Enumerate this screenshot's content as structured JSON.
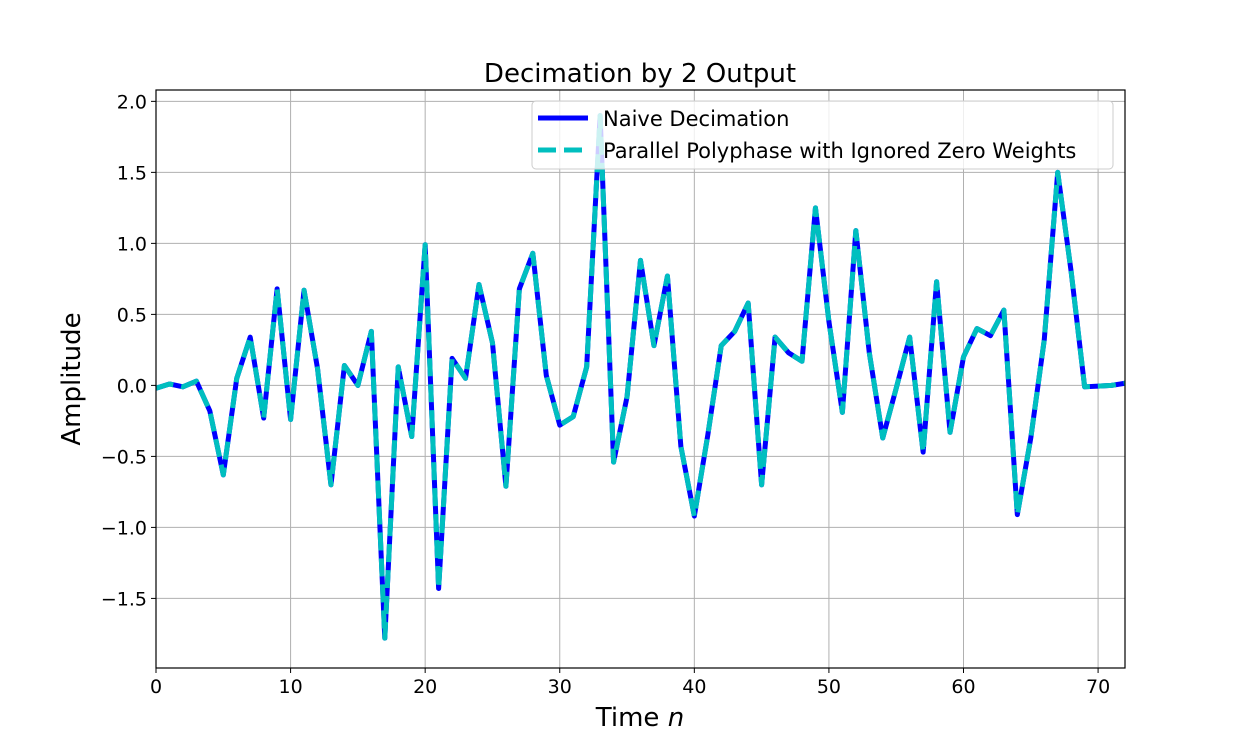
{
  "chart_data": {
    "type": "line",
    "title": "Decimation by 2 Output",
    "xlabel": "Time",
    "xlabel_italic": "n",
    "ylabel": "Amplitude",
    "xlim": [
      0,
      72
    ],
    "ylim": [
      -1.99,
      2.08
    ],
    "grid": true,
    "legend_position": "top-right",
    "xticks": [
      0,
      10,
      20,
      30,
      40,
      50,
      60,
      70
    ],
    "yticks": [
      -1.5,
      -1.0,
      -0.5,
      0.0,
      0.5,
      1.0,
      1.5,
      2.0
    ],
    "ytick_labels": [
      "−1.5",
      "−1.0",
      "−0.5",
      "0.0",
      "0.5",
      "1.0",
      "1.5",
      "2.0"
    ],
    "x": [
      0,
      1,
      2,
      3,
      4,
      5,
      6,
      7,
      8,
      9,
      10,
      11,
      12,
      13,
      14,
      15,
      16,
      17,
      18,
      19,
      20,
      21,
      22,
      23,
      24,
      25,
      26,
      27,
      28,
      29,
      30,
      31,
      32,
      33,
      34,
      35,
      36,
      37,
      38,
      39,
      40,
      41,
      42,
      43,
      44,
      45,
      46,
      47,
      48,
      49,
      50,
      51,
      52,
      53,
      54,
      55,
      56,
      57,
      58,
      59,
      60,
      61,
      62,
      63,
      64,
      65,
      66,
      67,
      68,
      69,
      70,
      71,
      72
    ],
    "series": [
      {
        "name": "Naive Decimation",
        "color": "#0000ff",
        "style": "solid",
        "values": [
          -0.02,
          0.01,
          -0.01,
          0.03,
          -0.18,
          -0.63,
          0.05,
          0.34,
          -0.23,
          0.68,
          -0.24,
          0.67,
          0.12,
          -0.7,
          0.14,
          0.0,
          0.38,
          -1.78,
          0.13,
          -0.36,
          0.99,
          -1.43,
          0.19,
          0.05,
          0.71,
          0.3,
          -0.71,
          0.68,
          0.93,
          0.07,
          -0.28,
          -0.22,
          0.13,
          1.9,
          -0.54,
          -0.08,
          0.88,
          0.28,
          0.77,
          -0.43,
          -0.92,
          -0.35,
          0.28,
          0.38,
          0.58,
          -0.7,
          0.34,
          0.23,
          0.17,
          1.25,
          0.45,
          -0.19,
          1.09,
          0.23,
          -0.37,
          -0.02,
          0.34,
          -0.47,
          0.73,
          -0.33,
          0.2,
          0.4,
          0.35,
          0.53,
          -0.91,
          -0.37,
          0.32,
          1.5,
          0.8,
          -0.01,
          -0.005,
          0.0,
          0.015
        ]
      },
      {
        "name": "Parallel Polyphase with Ignored Zero Weights",
        "color": "#00bfbf",
        "style": "dashed",
        "values": [
          -0.02,
          0.01,
          -0.01,
          0.03,
          -0.18,
          -0.63,
          0.05,
          0.34,
          -0.23,
          0.68,
          -0.24,
          0.67,
          0.12,
          -0.7,
          0.14,
          0.0,
          0.38,
          -1.78,
          0.13,
          -0.36,
          0.99,
          -1.43,
          0.19,
          0.05,
          0.71,
          0.3,
          -0.71,
          0.68,
          0.93,
          0.07,
          -0.28,
          -0.22,
          0.13,
          1.9,
          -0.54,
          -0.08,
          0.88,
          0.28,
          0.77,
          -0.43,
          -0.92,
          -0.35,
          0.28,
          0.38,
          0.58,
          -0.7,
          0.34,
          0.23,
          0.17,
          1.25,
          0.45,
          -0.19,
          1.09,
          0.23,
          -0.37,
          -0.02,
          0.34,
          -0.47,
          0.73,
          -0.33,
          0.2,
          0.4,
          0.35,
          0.53,
          -0.91,
          -0.37,
          0.32,
          1.5,
          0.8,
          -0.01,
          -0.005,
          0.0,
          0.015
        ]
      }
    ]
  }
}
